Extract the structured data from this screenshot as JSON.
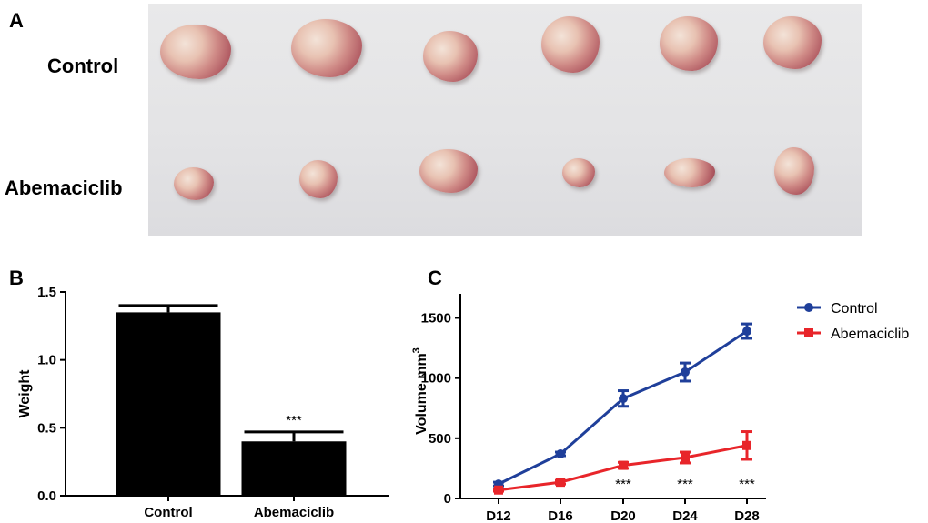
{
  "panels": {
    "a": "A",
    "b": "B",
    "c": "C"
  },
  "photo": {
    "row_labels": [
      "Control",
      "Abemaciclib"
    ],
    "control_count": 6,
    "abemaciclib_count": 6
  },
  "chart_data": [
    {
      "type": "bar",
      "panel": "B",
      "categories": [
        "Control",
        "Abemaciclib"
      ],
      "values": [
        1.35,
        0.4
      ],
      "errors": [
        0.05,
        0.07
      ],
      "annotations": [
        "",
        "***"
      ],
      "ylabel": "Weight",
      "ylim": [
        0,
        1.5
      ],
      "yticks": [
        "0.0",
        "0.5",
        "1.0",
        "1.5"
      ],
      "bar_color": "#000000"
    },
    {
      "type": "line",
      "panel": "C",
      "categories": [
        "D12",
        "D16",
        "D20",
        "D24",
        "D28"
      ],
      "series": [
        {
          "name": "Control",
          "values": [
            120,
            370,
            830,
            1050,
            1390
          ],
          "errors": [
            15,
            15,
            65,
            75,
            60
          ],
          "color": "#1f3f9a",
          "marker": "circle"
        },
        {
          "name": "Abemaciclib",
          "values": [
            70,
            135,
            275,
            340,
            440
          ],
          "errors": [
            10,
            15,
            25,
            45,
            115
          ],
          "color": "#e8252a",
          "marker": "square"
        }
      ],
      "annotations": [
        "",
        "",
        "***",
        "***",
        "***"
      ],
      "ylabel": "Volume mm",
      "ylabel_sup": "3",
      "ylim": [
        0,
        1700
      ],
      "yticks": [
        "0",
        "500",
        "1000",
        "1500"
      ],
      "legend": "top-right"
    }
  ]
}
